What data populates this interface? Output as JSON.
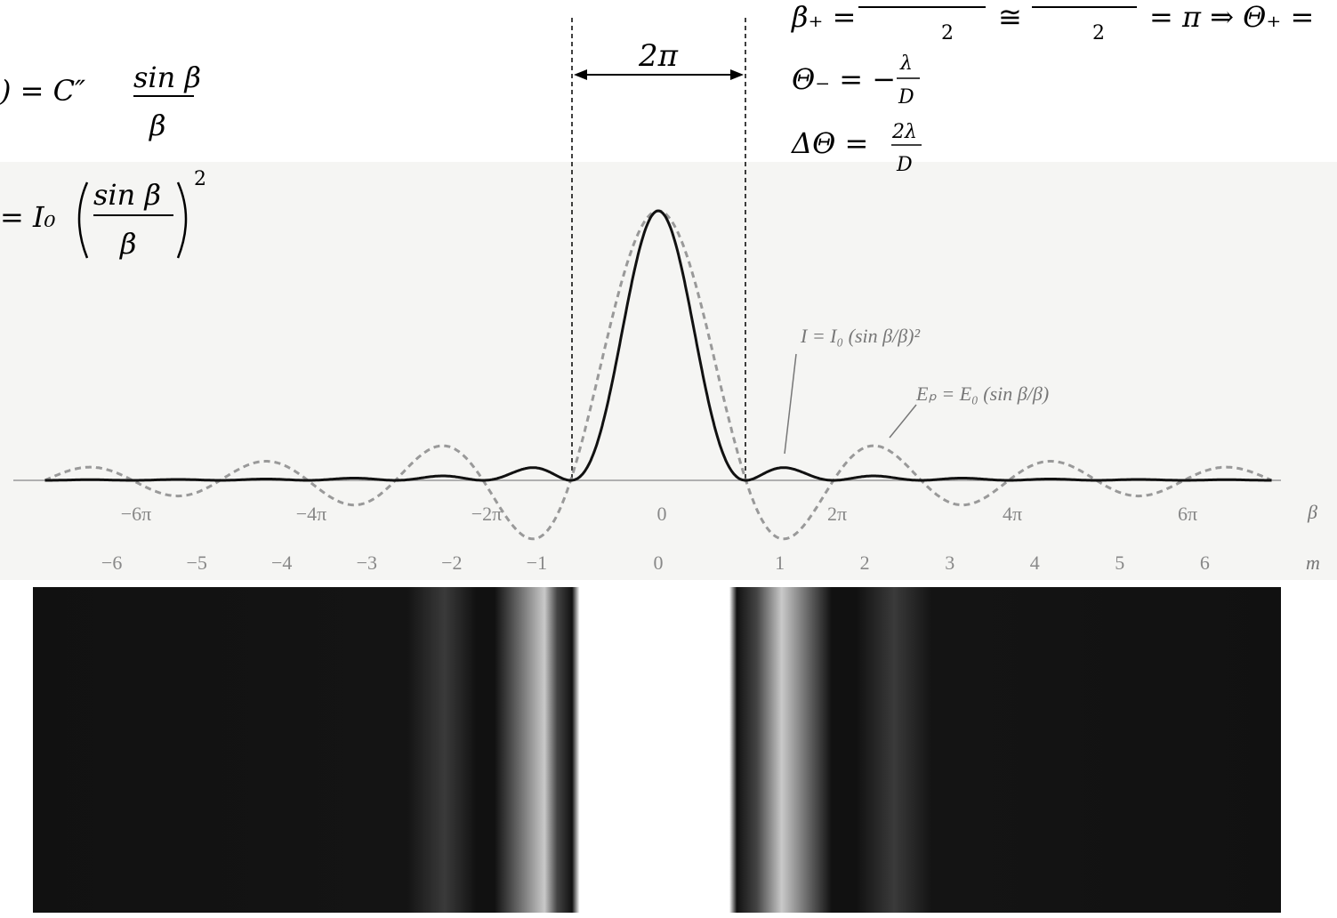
{
  "equations": {
    "left": {
      "field": ") = C″",
      "field_num": "sin β",
      "field_den": "β",
      "intensity": "= I₀",
      "intensity_num": "sin β",
      "intensity_den": "β",
      "intensity_exp": "2"
    },
    "right": {
      "beta_plus": "β₊ =",
      "beta_plus_den": "2",
      "approx": "≅",
      "approx_den": "2",
      "result": "= π ⇒ Θ₊ =",
      "theta_minus": "Θ₋ = −",
      "theta_minus_num": "λ",
      "theta_minus_den": "D",
      "delta": "ΔΘ =",
      "delta_num": "2λ",
      "delta_den": "D"
    }
  },
  "annotations": {
    "width": "2π",
    "intensity": "I = I₀ (sin β/β)²",
    "field": "Eₚ = E₀ (sin β/β)"
  },
  "axes": {
    "beta": {
      "label": "β",
      "ticks": [
        "−6π",
        "−4π",
        "−2π",
        "0",
        "2π",
        "4π",
        "6π"
      ]
    },
    "m": {
      "label": "m",
      "ticks": [
        "−6",
        "−5",
        "−4",
        "−3",
        "−2",
        "−1",
        "0",
        "1",
        "2",
        "3",
        "4",
        "5",
        "6"
      ]
    }
  }
}
